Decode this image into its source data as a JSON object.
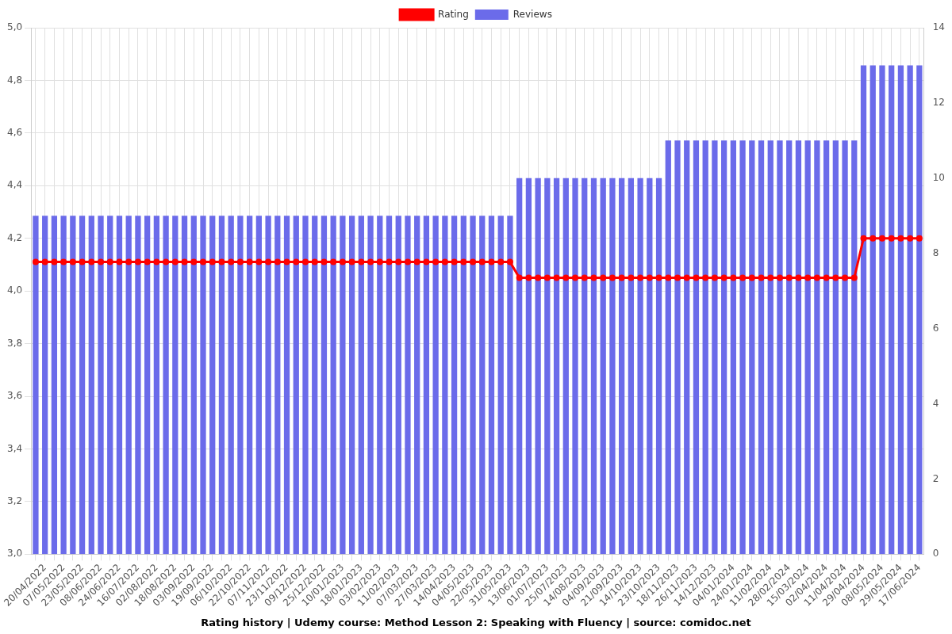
{
  "chart_data": {
    "type": "bar",
    "title": "Rating history | Udemy course: Method Lesson 2: Speaking with Fluency | source: comidoc.net",
    "categories": [
      null,
      "20/04/2022",
      null,
      "07/05/2022",
      null,
      "23/05/2022",
      null,
      "08/06/2022",
      null,
      "24/06/2022",
      null,
      "16/07/2022",
      null,
      "02/08/2022",
      null,
      "18/08/2022",
      null,
      "03/09/2022",
      null,
      "19/09/2022",
      null,
      "06/10/2022",
      null,
      "22/10/2022",
      null,
      "07/11/2022",
      null,
      "23/11/2022",
      null,
      "09/12/2022",
      null,
      "25/12/2022",
      null,
      "10/01/2023",
      null,
      "18/01/2023",
      null,
      "03/02/2023",
      null,
      "11/02/2023",
      null,
      "07/03/2023",
      null,
      "27/03/2023",
      null,
      "14/04/2023",
      null,
      "04/05/2023",
      null,
      "22/05/2023",
      null,
      "31/05/2023",
      null,
      "13/06/2023",
      null,
      "01/07/2023",
      null,
      "25/07/2023",
      null,
      "14/08/2023",
      null,
      "04/09/2023",
      null,
      "21/09/2023",
      null,
      "14/10/2023",
      null,
      "23/10/2023",
      null,
      "18/11/2023",
      null,
      "26/11/2023",
      null,
      "14/12/2023",
      null,
      "04/01/2024",
      null,
      "24/01/2024",
      null,
      "11/02/2024",
      null,
      "28/02/2024",
      null,
      "15/03/2024",
      null,
      "02/04/2024",
      null,
      "11/04/2024",
      null,
      "29/04/2024",
      null,
      "08/05/2024",
      null,
      "29/05/2024",
      null,
      "17/06/2024"
    ],
    "series": [
      {
        "name": "Rating",
        "type": "line",
        "color": "#ff0000",
        "marker": "circle",
        "values": [
          4.11,
          4.11,
          4.11,
          4.11,
          4.11,
          4.11,
          4.11,
          4.11,
          4.11,
          4.11,
          4.11,
          4.11,
          4.11,
          4.11,
          4.11,
          4.11,
          4.11,
          4.11,
          4.11,
          4.11,
          4.11,
          4.11,
          4.11,
          4.11,
          4.11,
          4.11,
          4.11,
          4.11,
          4.11,
          4.11,
          4.11,
          4.11,
          4.11,
          4.11,
          4.11,
          4.11,
          4.11,
          4.11,
          4.11,
          4.11,
          4.11,
          4.11,
          4.11,
          4.11,
          4.11,
          4.11,
          4.11,
          4.11,
          4.11,
          4.11,
          4.11,
          4.11,
          4.05,
          4.05,
          4.05,
          4.05,
          4.05,
          4.05,
          4.05,
          4.05,
          4.05,
          4.05,
          4.05,
          4.05,
          4.05,
          4.05,
          4.05,
          4.05,
          4.05,
          4.05,
          4.05,
          4.05,
          4.05,
          4.05,
          4.05,
          4.05,
          4.05,
          4.05,
          4.05,
          4.05,
          4.05,
          4.05,
          4.05,
          4.05,
          4.05,
          4.05,
          4.05,
          4.05,
          4.05,
          4.2,
          4.2,
          4.2,
          4.2,
          4.2,
          4.2,
          4.2
        ]
      },
      {
        "name": "Reviews",
        "type": "bar",
        "color": "#6b6bea",
        "axis": "y2",
        "values": [
          9,
          9,
          9,
          9,
          9,
          9,
          9,
          9,
          9,
          9,
          9,
          9,
          9,
          9,
          9,
          9,
          9,
          9,
          9,
          9,
          9,
          9,
          9,
          9,
          9,
          9,
          9,
          9,
          9,
          9,
          9,
          9,
          9,
          9,
          9,
          9,
          9,
          9,
          9,
          9,
          9,
          9,
          9,
          9,
          9,
          9,
          9,
          9,
          9,
          9,
          9,
          9,
          10,
          10,
          10,
          10,
          10,
          10,
          10,
          10,
          10,
          10,
          10,
          10,
          10,
          10,
          10,
          10,
          11,
          11,
          11,
          11,
          11,
          11,
          11,
          11,
          11,
          11,
          11,
          11,
          11,
          11,
          11,
          11,
          11,
          11,
          11,
          11,
          11,
          13,
          13,
          13,
          13,
          13,
          13,
          13
        ]
      }
    ],
    "ylim": [
      3,
      5
    ],
    "yticks": [
      {
        "value": 3,
        "label": "3,0"
      },
      {
        "value": 3.2,
        "label": "3,2"
      },
      {
        "value": 3.4,
        "label": "3,4"
      },
      {
        "value": 3.6,
        "label": "3,6"
      },
      {
        "value": 3.8,
        "label": "3,8"
      },
      {
        "value": 4,
        "label": "4,0"
      },
      {
        "value": 4.2,
        "label": "4,2"
      },
      {
        "value": 4.4,
        "label": "4,4"
      },
      {
        "value": 4.6,
        "label": "4,6"
      },
      {
        "value": 4.8,
        "label": "4,8"
      },
      {
        "value": 5,
        "label": "5,0"
      }
    ],
    "y2lim": [
      0,
      14
    ],
    "y2ticks": [
      0,
      2,
      4,
      6,
      8,
      10,
      12,
      14
    ],
    "grid": true,
    "legend": "top"
  }
}
